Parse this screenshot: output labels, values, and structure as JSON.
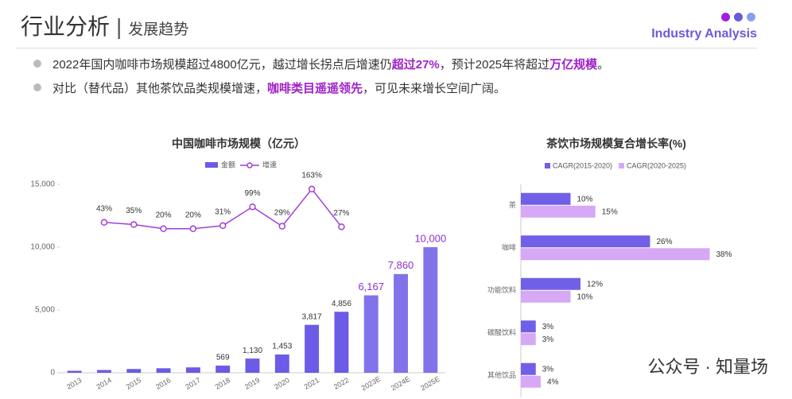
{
  "header": {
    "title": "行业分析",
    "subtitle": "发展趋势",
    "english": "Industry Analysis"
  },
  "bullets": [
    [
      "2022年国内咖啡市场规模超过4800亿元，越过增长拐点后增速仍",
      "超过27%",
      "，预计2025年将超过",
      "万亿规模",
      "。"
    ],
    [
      "对比（替代品）其他茶饮品类规模增速，",
      "咖啡类目遥遥领先",
      "，可见未来增长空间广阔。"
    ]
  ],
  "watermark": "公众号 · 知量场",
  "chart_data": [
    {
      "type": "bar-line",
      "title": "中国咖啡市场规模（亿元）",
      "categories": [
        "2013",
        "2014",
        "2015",
        "2016",
        "2017",
        "2018",
        "2019",
        "2020",
        "2021",
        "2022",
        "2023E",
        "2024E",
        "2025E"
      ],
      "series": [
        {
          "name": "金额",
          "color": "#6b5be6",
          "values": [
            160,
            220,
            300,
            360,
            430,
            569,
            1130,
            1453,
            3817,
            4856,
            6167,
            7860,
            10000
          ],
          "value_labels": [
            null,
            null,
            null,
            null,
            null,
            "569",
            "1,130",
            "1,453",
            "3,817",
            "4,856",
            "6,167",
            "7,860",
            "10,000"
          ]
        },
        {
          "name": "增速",
          "color": "#a03fd8",
          "axis": "y2",
          "values": [
            null,
            43,
            35,
            20,
            20,
            31,
            99,
            29,
            163,
            27,
            null,
            null,
            null
          ],
          "value_labels": [
            null,
            "43%",
            "35%",
            "20%",
            "20%",
            "31%",
            "99%",
            "29%",
            "163%",
            "27%",
            null,
            null,
            null
          ]
        }
      ],
      "ylim": [
        0,
        15000
      ],
      "yticks": [
        0,
        {
          "value": 5000,
          "label": "5,000"
        },
        {
          "value": 10000,
          "label": "10,000"
        },
        {
          "value": 15000,
          "label": "15,000"
        }
      ],
      "y2lim": [
        -500,
        180
      ]
    },
    {
      "type": "hbar",
      "title": "茶饮市场规模复合增长率(%)",
      "categories": [
        "茶",
        "咖啡",
        "功能饮料",
        "碳酸饮料",
        "其他饮品"
      ],
      "series": [
        {
          "name": "CAGR(2015-2020)",
          "color": "#7060e8",
          "values": [
            10,
            26,
            12,
            3,
            3
          ],
          "value_labels": [
            "10%",
            "26%",
            "12%",
            "3%",
            "3%"
          ]
        },
        {
          "name": "CAGR(2020-2025)",
          "color": "#d7a8f5",
          "values": [
            15,
            38,
            10,
            3,
            4
          ],
          "value_labels": [
            "15%",
            "38%",
            "10%",
            "3%",
            "4%"
          ]
        }
      ],
      "xlim": [
        0,
        40
      ]
    }
  ]
}
